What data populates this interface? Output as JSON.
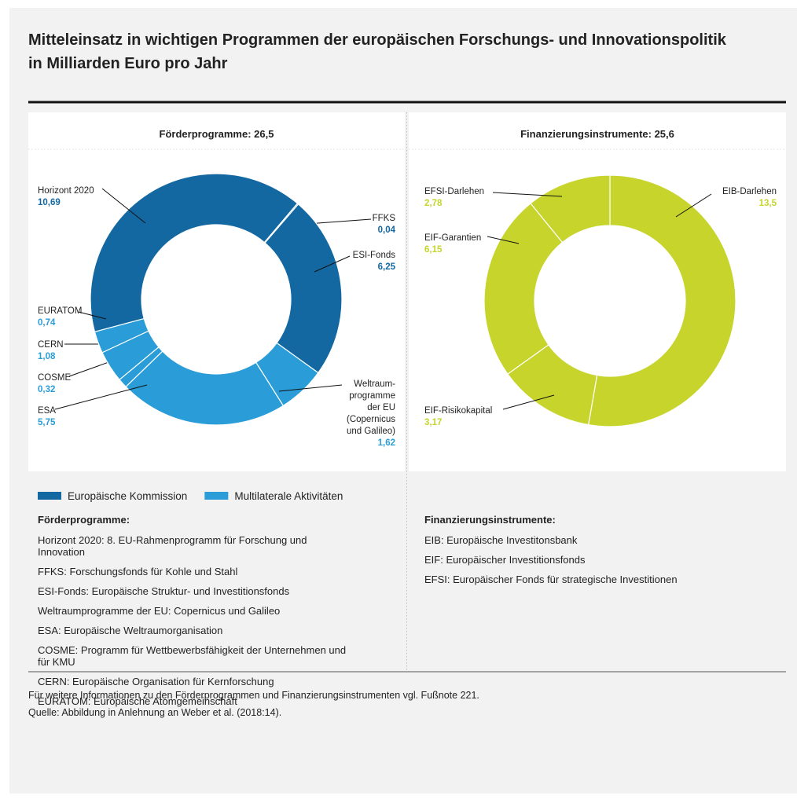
{
  "title": "Mitteleinsatz in wichtigen Programmen der europäischen Forschungs- und Innovationspolitik in Milliarden Euro pro Jahr",
  "chart_data": [
    {
      "type": "pie",
      "title": "Förderprogramme: 26,5",
      "categories": [
        "Horizont 2020",
        "FFKS",
        "ESI-Fonds",
        "Weltraum-\nprogramme\nder EU\n(Copernicus\nund Galileo)",
        "ESA",
        "COSME",
        "CERN",
        "EURATOM"
      ],
      "values": [
        10.69,
        0.04,
        6.25,
        1.62,
        5.75,
        0.32,
        1.08,
        0.74
      ],
      "value_labels": [
        "10,69",
        "0,04",
        "6,25",
        "1,62",
        "5,75",
        "0,32",
        "1,08",
        "0,74"
      ],
      "colors": [
        "#1468a2",
        "#1468a2",
        "#1468a2",
        "#2a9dd8",
        "#2a9dd8",
        "#2a9dd8",
        "#2a9dd8",
        "#2a9dd8"
      ]
    },
    {
      "type": "pie",
      "title": "Finanzierungsinstrumente: 25,6",
      "categories": [
        "EIB-Darlehen",
        "EIF-Risikokapital",
        "EIF-Garantien",
        "EFSI-Darlehen"
      ],
      "values": [
        13.5,
        3.17,
        6.15,
        2.78
      ],
      "value_labels": [
        "13,5",
        "3,17",
        "6,15",
        "2,78"
      ],
      "colors": [
        "#c6d42b",
        "#c6d42b",
        "#c6d42b",
        "#c6d42b"
      ]
    }
  ],
  "legend": [
    {
      "name": "Europäische Kommission",
      "color": "#1468a2"
    },
    {
      "name": "Multilaterale Aktivitäten",
      "color": "#2a9dd8"
    }
  ],
  "glossary": [
    {
      "heading": "Förderprogramme:",
      "items": [
        "Horizont 2020: 8. EU-Rahmenprogramm für Forschung und Innovation",
        "FFKS: Forschungsfonds für Kohle und Stahl",
        "ESI-Fonds: Europäische Struktur- und Investitionsfonds",
        "Weltraumprogramme der EU: Copernicus und Galileo",
        "ESA: Europäische Weltraumorganisation",
        "COSME: Programm für Wettbewerbsfähigkeit der Unternehmen und für KMU",
        "CERN: Europäische Organisation für Kernforschung",
        "EURATOM: Europäische Atomgemeinschaft"
      ]
    },
    {
      "heading": "Finanzierungsinstrumente:",
      "items": [
        "EIB: Europäische Investitonsbank",
        "EIF: Europäischer Investitionsfonds",
        "EFSI: Europäischer Fonds für strategische Investitionen"
      ]
    }
  ],
  "footnotes": [
    "Für weitere Informationen zu den Förderprogrammen und Finanzierungsinstrumenten vgl. Fußnote 221.",
    "Quelle: Abbildung in Anlehnung an Weber et al. (2018:14)."
  ]
}
